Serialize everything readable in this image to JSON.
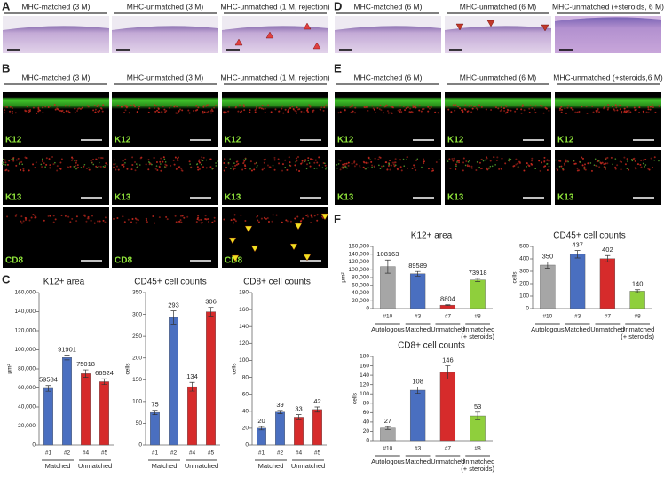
{
  "panel_labels": [
    "A",
    "B",
    "C",
    "D",
    "E",
    "F"
  ],
  "panel_a": {
    "headers": [
      "MHC-matched (3 M)",
      "MHC-unmatched (3 M)",
      "MHC-unmatched (1 M, rejection)"
    ]
  },
  "panel_b": {
    "headers": [
      "MHC-matched (3 M)",
      "MHC-unmatched (3 M)",
      "MHC-unmatched (1 M, rejection)"
    ],
    "rows": [
      "K12",
      "K13",
      "CD8"
    ]
  },
  "panel_d": {
    "headers": [
      "MHC-matched (6 M)",
      "MHC-unmatched (6 M)",
      "MHC-unmatched (+steroids, 6 M)"
    ]
  },
  "panel_e": {
    "headers": [
      "MHC-matched (6 M)",
      "MHC-unmatched (6 M)",
      "MHC-unmatched (+steroids,6 M)"
    ],
    "rows": [
      "K12",
      "K13"
    ]
  },
  "chart_data": [
    {
      "type": "bar",
      "title": "K12+ area",
      "y_label": "μm²",
      "categories": [
        "#1",
        "#2",
        "#4",
        "#5"
      ],
      "values": [
        59584,
        91901,
        75018,
        66524
      ],
      "errors": [
        3000,
        2500,
        4000,
        3000
      ],
      "colors": [
        "#4a6fc0",
        "#4a6fc0",
        "#d62b2b",
        "#d62b2b"
      ],
      "groups": [
        "Matched",
        "Unmatched"
      ],
      "ylim": [
        0,
        160000
      ],
      "yticks": [
        0,
        {
          "value": 20000,
          "label": "20,000"
        },
        {
          "value": 40000,
          "label": "40,000"
        },
        {
          "value": 60000,
          "label": "60,000"
        },
        {
          "value": 80000,
          "label": "80,000"
        },
        {
          "value": 100000,
          "label": "100,000"
        },
        {
          "value": 120000,
          "label": "120,000"
        },
        {
          "value": 140000,
          "label": "140,000"
        },
        {
          "value": 160000,
          "label": "160,000"
        }
      ]
    },
    {
      "type": "bar",
      "title": "CD45+ cell counts",
      "y_label": "cells",
      "categories": [
        "#1",
        "#2",
        "#4",
        "#5"
      ],
      "values": [
        75,
        293,
        134,
        306
      ],
      "errors": [
        5,
        15,
        10,
        10
      ],
      "colors": [
        "#4a6fc0",
        "#4a6fc0",
        "#d62b2b",
        "#d62b2b"
      ],
      "groups": [
        "Matched",
        "Unmatched"
      ],
      "ylim": [
        0,
        350
      ],
      "yticks": [
        0,
        50,
        100,
        150,
        200,
        250,
        300,
        350
      ]
    },
    {
      "type": "bar",
      "title": "CD8+ cell counts",
      "y_label": "cells",
      "categories": [
        "#1",
        "#2",
        "#4",
        "#5"
      ],
      "values": [
        20,
        39,
        33,
        42
      ],
      "errors": [
        2,
        2,
        3,
        3
      ],
      "colors": [
        "#4a6fc0",
        "#4a6fc0",
        "#d62b2b",
        "#d62b2b"
      ],
      "groups": [
        "Matched",
        "Unmatched"
      ],
      "ylim": [
        0,
        180
      ],
      "yticks": [
        0,
        20,
        40,
        60,
        80,
        100,
        120,
        140,
        160,
        180
      ]
    },
    {
      "type": "bar",
      "title": "K12+ area",
      "y_label": "μm²",
      "categories": [
        "#10",
        "#3",
        "#7",
        "#8"
      ],
      "values": [
        108163,
        89589,
        8804,
        73918
      ],
      "errors": [
        17000,
        6000,
        1000,
        4000
      ],
      "colors": [
        "#a6a6a6",
        "#4a6fc0",
        "#d62b2b",
        "#8fcf3c"
      ],
      "groups": [
        "Autologous",
        "Matched",
        "Unmatched",
        "Unmatched\n(+ steroids)"
      ],
      "ylim": [
        0,
        160000
      ],
      "yticks": [
        0,
        {
          "value": 20000,
          "label": "20,000"
        },
        {
          "value": 40000,
          "label": "40,000"
        },
        {
          "value": 60000,
          "label": "60,000"
        },
        {
          "value": 80000,
          "label": "80,000"
        },
        {
          "value": 100000,
          "label": "100,000"
        },
        {
          "value": 120000,
          "label": "120,000"
        },
        {
          "value": 140000,
          "label": "140,000"
        },
        {
          "value": 160000,
          "label": "160,000"
        }
      ]
    },
    {
      "type": "bar",
      "title": "CD45+ cell counts",
      "y_label": "cells",
      "categories": [
        "#10",
        "#3",
        "#7",
        "#8"
      ],
      "values": [
        350,
        437,
        402,
        140
      ],
      "errors": [
        25,
        30,
        25,
        12
      ],
      "colors": [
        "#a6a6a6",
        "#4a6fc0",
        "#d62b2b",
        "#8fcf3c"
      ],
      "groups": [
        "Autologous",
        "Matched",
        "Unmatched",
        "Unmatched\n(+ steroids)"
      ],
      "ylim": [
        0,
        500
      ],
      "yticks": [
        0,
        100,
        200,
        300,
        400,
        500
      ]
    },
    {
      "type": "bar",
      "title": "CD8+ cell counts",
      "y_label": "cells",
      "categories": [
        "#10",
        "#3",
        "#7",
        "#8"
      ],
      "values": [
        27,
        108,
        146,
        53
      ],
      "errors": [
        3,
        7,
        14,
        8
      ],
      "colors": [
        "#a6a6a6",
        "#4a6fc0",
        "#d62b2b",
        "#8fcf3c"
      ],
      "groups": [
        "Autologous",
        "Matched",
        "Unmatched",
        "Unmatched\n(+ steroids)"
      ],
      "ylim": [
        0,
        180
      ],
      "yticks": [
        0,
        20,
        40,
        60,
        80,
        100,
        120,
        140,
        160,
        180
      ]
    }
  ]
}
